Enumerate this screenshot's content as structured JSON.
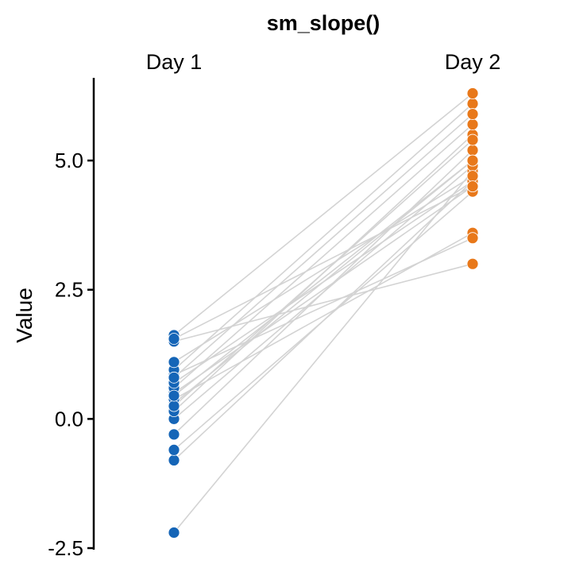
{
  "chart_data": {
    "type": "slope",
    "title": "sm_slope()",
    "ylabel": "Value",
    "xlabel": "",
    "categories": [
      "Day 1",
      "Day 2"
    ],
    "ylim": [
      -2.5,
      6.6
    ],
    "yticks": [
      -2.5,
      0.0,
      2.5,
      5.0
    ],
    "ytick_labels": [
      "-2.5",
      "0.0",
      "2.5",
      "5.0"
    ],
    "grid": false,
    "legend": "none",
    "colors": {
      "day1": "#1565B7",
      "day2": "#E8781A",
      "line": "#D3D3D3"
    },
    "pairs": [
      {
        "day1": -2.2,
        "day2": 4.8
      },
      {
        "day1": -0.8,
        "day2": 4.6
      },
      {
        "day1": -0.6,
        "day2": 4.4
      },
      {
        "day1": -0.3,
        "day2": 5.2
      },
      {
        "day1": 0.0,
        "day2": 4.9
      },
      {
        "day1": 0.15,
        "day2": 5.5
      },
      {
        "day1": 0.3,
        "day2": 5.0
      },
      {
        "day1": 0.38,
        "day2": 3.6
      },
      {
        "day1": 0.5,
        "day2": 4.5
      },
      {
        "day1": 0.6,
        "day2": 5.7
      },
      {
        "day1": 0.7,
        "day2": 4.6
      },
      {
        "day1": 0.85,
        "day2": 3.5
      },
      {
        "day1": 0.95,
        "day2": 6.1
      },
      {
        "day1": 1.1,
        "day2": 4.7
      },
      {
        "day1": 1.5,
        "day2": 3.0
      },
      {
        "day1": 1.62,
        "day2": 6.3
      },
      {
        "day1": 0.25,
        "day2": 5.4
      },
      {
        "day1": 0.45,
        "day2": 5.0
      },
      {
        "day1": 0.8,
        "day2": 5.9
      },
      {
        "day1": 1.55,
        "day2": 4.5
      }
    ]
  }
}
